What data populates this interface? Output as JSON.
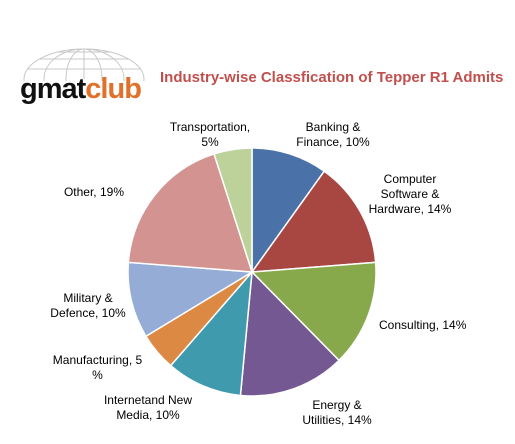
{
  "logo": {
    "part1": "gmat",
    "part2": "club"
  },
  "colors": {
    "title": "#c0504d",
    "logo_accent": "#e0702a"
  },
  "chart_data": {
    "type": "pie",
    "title": "Industry-wise Classfication  of Tepper R1 Admits",
    "legend": "none",
    "start_angle_deg": 0,
    "direction": "clockwise",
    "slices": [
      {
        "name": "Banking & Finance",
        "value": 10,
        "color": "#4a72a9",
        "label_lines": [
          "Banking &",
          "Finance, 10%"
        ]
      },
      {
        "name": "Computer Software & Hardware",
        "value": 14,
        "color": "#a84642",
        "label_lines": [
          "Computer",
          "Software &",
          "Hardware, 14%"
        ]
      },
      {
        "name": "Consulting",
        "value": 14,
        "color": "#87a94c",
        "label_lines": [
          "Consulting, 14%"
        ]
      },
      {
        "name": "Energy & Utilities",
        "value": 14,
        "color": "#735892",
        "label_lines": [
          "Energy &",
          "Utilities, 14%"
        ]
      },
      {
        "name": "Internet and New Media",
        "value": 10,
        "color": "#3f9aad",
        "label_lines": [
          "Internetand New",
          "Media, 10%"
        ]
      },
      {
        "name": "Manufacturing",
        "value": 5,
        "color": "#dc8a43",
        "label_lines": [
          "Manufacturing, 5",
          "%"
        ]
      },
      {
        "name": "Military & Defence",
        "value": 10,
        "color": "#94acd6",
        "label_lines": [
          "Military &",
          "Defence, 10%"
        ]
      },
      {
        "name": "Other",
        "value": 19,
        "color": "#d39390",
        "label_lines": [
          "Other, 19%"
        ]
      },
      {
        "name": "Transportation",
        "value": 5,
        "color": "#bdd19b",
        "label_lines": [
          "Transportation,",
          "5%"
        ]
      }
    ]
  }
}
